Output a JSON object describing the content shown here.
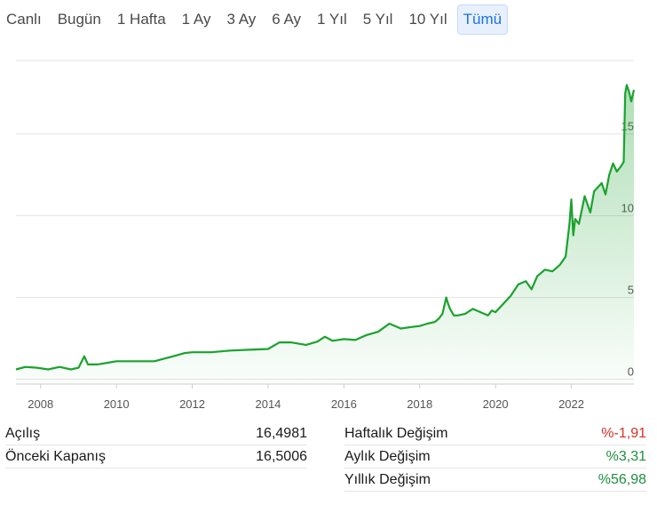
{
  "range_tabs": [
    {
      "label": "Canlı",
      "active": false
    },
    {
      "label": "Bugün",
      "active": false
    },
    {
      "label": "1 Hafta",
      "active": false
    },
    {
      "label": "1 Ay",
      "active": false
    },
    {
      "label": "3 Ay",
      "active": false
    },
    {
      "label": "6 Ay",
      "active": false
    },
    {
      "label": "1 Yıl",
      "active": false
    },
    {
      "label": "5 Yıl",
      "active": false
    },
    {
      "label": "10 Yıl",
      "active": false
    },
    {
      "label": "Tümü",
      "active": true
    }
  ],
  "colors": {
    "line": "#1aa22e",
    "fill_top": "#1aa22e",
    "grid": "#e3e3e3",
    "axis_text": "#555555",
    "negative": "#d93025",
    "positive": "#1e8e3e",
    "active_tab": "#1a73e8"
  },
  "chart_data": {
    "type": "area",
    "title": "",
    "xlabel": "",
    "ylabel": "",
    "xlim": [
      2007.35,
      2023.65
    ],
    "ylim": [
      -0.3,
      19.5
    ],
    "x_ticks": [
      2008,
      2010,
      2012,
      2014,
      2016,
      2018,
      2020,
      2022
    ],
    "x_tick_labels": [
      "2008",
      "2010",
      "2012",
      "2014",
      "2016",
      "2018",
      "2020",
      "2022"
    ],
    "y_ticks": [
      0,
      5,
      10,
      15
    ],
    "y_tick_labels": [
      "0",
      "5",
      "10",
      "15"
    ],
    "grid": true,
    "legend": "none",
    "series": [
      {
        "points": [
          [
            2007.35,
            0.6
          ],
          [
            2007.6,
            0.75
          ],
          [
            2007.9,
            0.7
          ],
          [
            2008.2,
            0.6
          ],
          [
            2008.5,
            0.75
          ],
          [
            2008.8,
            0.6
          ],
          [
            2009.0,
            0.7
          ],
          [
            2009.15,
            1.4
          ],
          [
            2009.25,
            0.9
          ],
          [
            2009.5,
            0.9
          ],
          [
            2010.0,
            1.1
          ],
          [
            2010.5,
            1.1
          ],
          [
            2011.0,
            1.1
          ],
          [
            2011.5,
            1.4
          ],
          [
            2011.8,
            1.6
          ],
          [
            2012.0,
            1.65
          ],
          [
            2012.5,
            1.65
          ],
          [
            2013.0,
            1.75
          ],
          [
            2013.5,
            1.8
          ],
          [
            2014.0,
            1.85
          ],
          [
            2014.3,
            2.25
          ],
          [
            2014.6,
            2.25
          ],
          [
            2015.0,
            2.1
          ],
          [
            2015.3,
            2.3
          ],
          [
            2015.5,
            2.6
          ],
          [
            2015.7,
            2.35
          ],
          [
            2016.0,
            2.45
          ],
          [
            2016.3,
            2.4
          ],
          [
            2016.6,
            2.7
          ],
          [
            2016.9,
            2.9
          ],
          [
            2017.2,
            3.4
          ],
          [
            2017.5,
            3.1
          ],
          [
            2017.8,
            3.2
          ],
          [
            2018.0,
            3.25
          ],
          [
            2018.2,
            3.4
          ],
          [
            2018.4,
            3.5
          ],
          [
            2018.5,
            3.7
          ],
          [
            2018.6,
            4.0
          ],
          [
            2018.7,
            5.0
          ],
          [
            2018.75,
            4.6
          ],
          [
            2018.8,
            4.3
          ],
          [
            2018.9,
            3.9
          ],
          [
            2019.0,
            3.9
          ],
          [
            2019.2,
            4.0
          ],
          [
            2019.4,
            4.3
          ],
          [
            2019.6,
            4.1
          ],
          [
            2019.8,
            3.9
          ],
          [
            2019.9,
            4.2
          ],
          [
            2020.0,
            4.1
          ],
          [
            2020.2,
            4.6
          ],
          [
            2020.4,
            5.1
          ],
          [
            2020.6,
            5.8
          ],
          [
            2020.8,
            6.0
          ],
          [
            2020.95,
            5.5
          ],
          [
            2021.1,
            6.3
          ],
          [
            2021.3,
            6.7
          ],
          [
            2021.5,
            6.6
          ],
          [
            2021.7,
            7.0
          ],
          [
            2021.85,
            7.5
          ],
          [
            2021.95,
            9.5
          ],
          [
            2022.0,
            11.0
          ],
          [
            2022.05,
            8.8
          ],
          [
            2022.1,
            9.8
          ],
          [
            2022.2,
            9.5
          ],
          [
            2022.35,
            11.2
          ],
          [
            2022.5,
            10.2
          ],
          [
            2022.6,
            11.5
          ],
          [
            2022.8,
            12.0
          ],
          [
            2022.9,
            11.3
          ],
          [
            2023.0,
            12.5
          ],
          [
            2023.1,
            13.2
          ],
          [
            2023.2,
            12.7
          ],
          [
            2023.3,
            13.0
          ],
          [
            2023.38,
            13.3
          ],
          [
            2023.42,
            17.5
          ],
          [
            2023.46,
            18.0
          ],
          [
            2023.52,
            17.6
          ],
          [
            2023.58,
            17.0
          ],
          [
            2023.65,
            17.7
          ]
        ]
      }
    ]
  },
  "stats_left": [
    {
      "label": "Açılış",
      "value": "16,4981",
      "tone": "neutral"
    },
    {
      "label": "Önceki Kapanış",
      "value": "16,5006",
      "tone": "neutral"
    }
  ],
  "stats_right": [
    {
      "label": "Haftalık Değişim",
      "value": "%-1,91",
      "tone": "neg"
    },
    {
      "label": "Aylık Değişim",
      "value": "%3,31",
      "tone": "pos"
    },
    {
      "label": "Yıllık Değişim",
      "value": "%56,98",
      "tone": "pos"
    }
  ]
}
